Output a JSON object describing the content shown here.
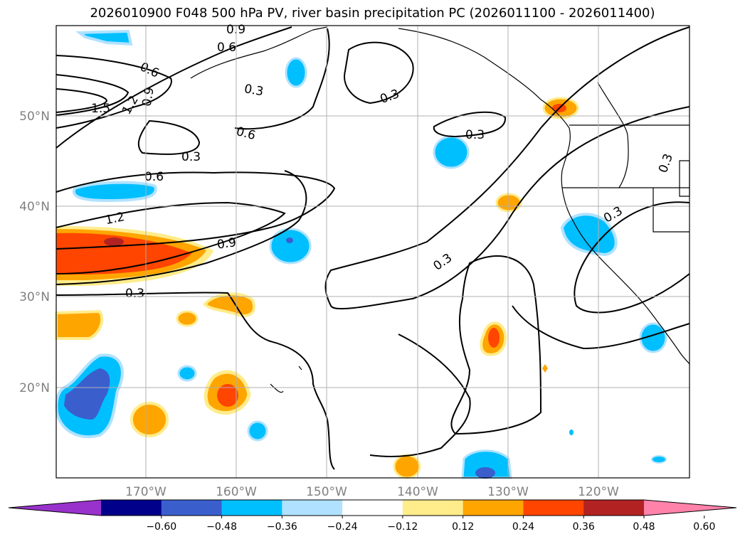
{
  "title": "2026010900 F048 500 hPa PV, river basin precipitation PC (2026011100 - 2026011400)",
  "map": {
    "lon_range": [
      -180,
      -110
    ],
    "lat_range": [
      10,
      60
    ],
    "lon_ticks": [
      {
        "value": -170,
        "label": "170°W"
      },
      {
        "value": -160,
        "label": "160°W"
      },
      {
        "value": -150,
        "label": "150°W"
      },
      {
        "value": -140,
        "label": "140°W"
      },
      {
        "value": -130,
        "label": "130°W"
      },
      {
        "value": -120,
        "label": "120°W"
      }
    ],
    "lat_ticks": [
      {
        "value": 20,
        "label": "20°N"
      },
      {
        "value": 30,
        "label": "30°N"
      },
      {
        "value": 40,
        "label": "40°N"
      },
      {
        "value": 50,
        "label": "50°N"
      }
    ],
    "contour_labels": [
      "1.5",
      "1.2",
      "0.9",
      "0.6",
      "0.3",
      "0.6",
      "0.3",
      "0.9",
      "0.6",
      "0.3",
      "0.3",
      "0.6",
      "1.2",
      "0.9",
      "0.3",
      "0.3",
      "0.3",
      "0.3",
      "0.9",
      "0.9",
      "1.2"
    ]
  },
  "colorbar": {
    "colors": [
      "#9932cc",
      "#00008b",
      "#3a5fcd",
      "#00bfff",
      "#b0e2ff",
      "#ffffff",
      "#ffec8b",
      "#ffa500",
      "#ff4500",
      "#b22222",
      "#ff82ab"
    ],
    "tick_labels": [
      "−0.60",
      "−0.48",
      "−0.36",
      "−0.24",
      "−0.12",
      "0.12",
      "0.24",
      "0.36",
      "0.48",
      "0.60"
    ]
  },
  "chart_data": {
    "type": "map",
    "title": "2026010900 F048 500 hPa PV, river basin precipitation PC (2026011100 - 2026011400)",
    "contour_levels": [
      0.3,
      0.6,
      0.9,
      1.2,
      1.5
    ],
    "shading_levels": [
      -0.6,
      -0.48,
      -0.36,
      -0.24,
      -0.12,
      0.12,
      0.24,
      0.36,
      0.48,
      0.6
    ],
    "lon_range": [
      -180,
      -110
    ],
    "lat_range": [
      10,
      60
    ]
  }
}
